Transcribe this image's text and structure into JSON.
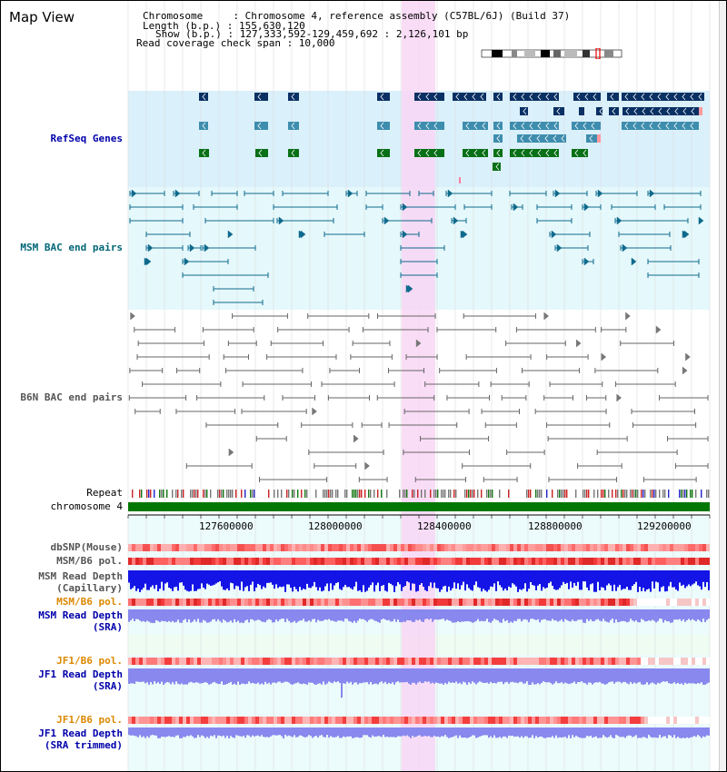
{
  "view_title": "Map View",
  "info": {
    "chromosome_line": "Chromosome     : Chromosome 4, reference assembly (C57BL/6J) (Build 37)",
    "length_line": "Length (b.p.) : 155,630,120",
    "show_line": "Show (b.p.) : 127,333,592-129,459,692 : 2,126,101 bp",
    "coverage_line": "Read coverage check span : 10,000"
  },
  "tracks": {
    "refseq": "RefSeq Genes",
    "msm_bac": "MSM BAC end pairs",
    "b6n_bac": "B6N BAC end pairs",
    "repeat": "Repeat",
    "chromosome": "chromosome 4",
    "dbsnp": "dbSNP(Mouse)",
    "msm_b6_pol_1": "MSM/B6 pol.",
    "msm_depth_cap_1": "MSM Read Depth",
    "msm_depth_cap_2": "(Capillary)",
    "msm_b6_pol_2": "MSM/B6 pol.",
    "msm_depth_sra_1": "MSM Read Depth",
    "msm_depth_sra_2": "(SRA)",
    "jf1_b6_pol_1": "JF1/B6 pol.",
    "jf1_depth_sra_1": "JF1 Read Depth",
    "jf1_depth_sra_2": "(SRA)",
    "jf1_b6_pol_2": "JF1/B6 pol.",
    "jf1_depth_trim_1": "JF1 Read Depth",
    "jf1_depth_trim_2": "(SRA trimmed)"
  },
  "axis_ticks": [
    "127600000",
    "128000000",
    "128400000",
    "128800000",
    "129200000"
  ],
  "colors": {
    "refseq_bg": "#daf0fb",
    "bac_bg": "#e5f8fb",
    "highlight": "#f8d6f4",
    "dark_blue": "#0a3064",
    "mid_blue": "#3e8dae",
    "green": "#087016",
    "msm_line": "#0e6a8c",
    "b6n_line": "#666666",
    "label_blue": "#0000aa",
    "label_teal": "#006677",
    "label_orange": "#dd8800",
    "depth_blue": "#1414e6",
    "depth_light": "#8888ee",
    "chrom_green": "#007700"
  }
}
